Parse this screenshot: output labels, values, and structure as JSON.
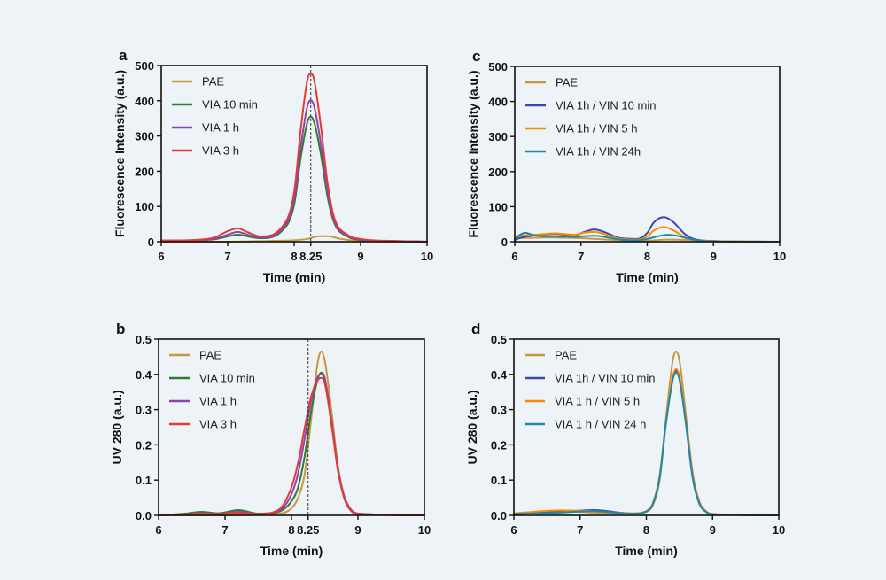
{
  "chart_data": [
    {
      "id": "a",
      "type": "line",
      "panel_label": "a",
      "xlabel": "Time (min)",
      "ylabel": "Fluorescence Intensity (a.u.)",
      "xlim": [
        6,
        10
      ],
      "ylim": [
        0,
        500
      ],
      "xticks": [
        "6",
        "7",
        "8",
        "8.25",
        "9",
        "10"
      ],
      "xtick_values": [
        6,
        7,
        8,
        8.25,
        9,
        10
      ],
      "yticks": [
        "0",
        "100",
        "200",
        "300",
        "400",
        "500"
      ],
      "ytick_values": [
        0,
        100,
        200,
        300,
        400,
        500
      ],
      "marker_line_x": 8.25,
      "legend_position": "top-left",
      "series": [
        {
          "name": "PAE",
          "color": "#c9973f",
          "x": [
            6.0,
            7.0,
            7.6,
            8.0,
            8.2,
            8.35,
            8.5,
            8.7,
            9.0,
            10.0
          ],
          "y": [
            0,
            0,
            2,
            4,
            8,
            15,
            16,
            8,
            2,
            0
          ]
        },
        {
          "name": "VIA 10 min",
          "color": "#2e7d32",
          "x": [
            6.0,
            6.5,
            6.8,
            7.0,
            7.15,
            7.3,
            7.5,
            7.8,
            8.0,
            8.1,
            8.2,
            8.25,
            8.3,
            8.4,
            8.5,
            8.6,
            8.8,
            9.0,
            9.5,
            10.0
          ],
          "y": [
            3,
            4,
            7,
            15,
            20,
            15,
            10,
            28,
            105,
            240,
            340,
            355,
            340,
            250,
            130,
            55,
            15,
            5,
            2,
            0
          ]
        },
        {
          "name": "VIA 1 h",
          "color": "#8e44ad",
          "x": [
            6.0,
            6.5,
            6.8,
            7.0,
            7.15,
            7.3,
            7.5,
            7.8,
            8.0,
            8.1,
            8.2,
            8.25,
            8.3,
            8.4,
            8.5,
            8.6,
            8.8,
            9.0,
            9.5,
            10.0
          ],
          "y": [
            3,
            4,
            8,
            20,
            28,
            20,
            12,
            32,
            120,
            270,
            385,
            402,
            385,
            280,
            145,
            60,
            17,
            6,
            2,
            0
          ]
        },
        {
          "name": "VIA 3 h",
          "color": "#e53935",
          "x": [
            6.0,
            6.5,
            6.8,
            7.0,
            7.15,
            7.3,
            7.5,
            7.8,
            8.0,
            8.1,
            8.2,
            8.25,
            8.3,
            8.4,
            8.5,
            8.6,
            8.8,
            9.0,
            9.5,
            10.0
          ],
          "y": [
            3,
            5,
            12,
            30,
            38,
            27,
            15,
            38,
            140,
            320,
            460,
            478,
            460,
            330,
            170,
            70,
            20,
            8,
            2,
            0
          ]
        }
      ]
    },
    {
      "id": "c",
      "type": "line",
      "panel_label": "c",
      "xlabel": "Time (min)",
      "ylabel": "Fluorescence Intensity (a.u.)",
      "xlim": [
        6,
        10
      ],
      "ylim": [
        0,
        500
      ],
      "xticks": [
        "6",
        "7",
        "8",
        "9",
        "10"
      ],
      "xtick_values": [
        6,
        7,
        8,
        9,
        10
      ],
      "yticks": [
        "0",
        "100",
        "200",
        "300",
        "400",
        "500"
      ],
      "ytick_values": [
        0,
        100,
        200,
        300,
        400,
        500
      ],
      "legend_position": "top-left",
      "series": [
        {
          "name": "PAE",
          "color": "#c9973f",
          "x": [
            6.0,
            6.5,
            7.0,
            7.5,
            8.0,
            8.3,
            8.6,
            9.0,
            10.0
          ],
          "y": [
            10,
            12,
            10,
            5,
            3,
            6,
            5,
            2,
            0
          ]
        },
        {
          "name": "VIA 1h / VIN 10 min",
          "color": "#3949ab",
          "x": [
            6.0,
            6.1,
            6.3,
            6.6,
            6.9,
            7.05,
            7.2,
            7.35,
            7.6,
            7.85,
            8.0,
            8.1,
            8.25,
            8.4,
            8.55,
            8.7,
            9.0,
            10.0
          ],
          "y": [
            5,
            12,
            18,
            22,
            18,
            28,
            35,
            28,
            10,
            8,
            25,
            55,
            70,
            55,
            25,
            8,
            2,
            0
          ]
        },
        {
          "name": "VIA 1h / VIN 5 h",
          "color": "#fb8c00",
          "x": [
            6.0,
            6.1,
            6.3,
            6.6,
            6.9,
            7.05,
            7.2,
            7.35,
            7.6,
            7.85,
            8.0,
            8.1,
            8.25,
            8.4,
            8.55,
            8.7,
            9.0,
            10.0
          ],
          "y": [
            10,
            18,
            20,
            24,
            20,
            26,
            28,
            22,
            8,
            6,
            15,
            32,
            42,
            32,
            15,
            5,
            2,
            0
          ]
        },
        {
          "name": "VIA 1h / VIN 24h",
          "color": "#1e88a8",
          "x": [
            6.0,
            6.1,
            6.15,
            6.3,
            6.6,
            6.9,
            7.05,
            7.2,
            7.35,
            7.6,
            7.85,
            8.0,
            8.15,
            8.3,
            8.45,
            8.6,
            8.8,
            9.0,
            10.0
          ],
          "y": [
            10,
            22,
            26,
            18,
            15,
            14,
            16,
            17,
            14,
            6,
            4,
            8,
            15,
            20,
            17,
            10,
            3,
            1,
            0
          ]
        }
      ]
    },
    {
      "id": "b",
      "type": "line",
      "panel_label": "b",
      "xlabel": "Time (min)",
      "ylabel": "UV 280 (a.u.)",
      "xlim": [
        6,
        10
      ],
      "ylim": [
        0,
        0.5
      ],
      "xticks": [
        "6",
        "7",
        "8",
        "8.25",
        "9",
        "10"
      ],
      "xtick_values": [
        6,
        7,
        8,
        8.25,
        9,
        10
      ],
      "yticks": [
        "0.0",
        "0.1",
        "0.2",
        "0.3",
        "0.4",
        "0.5"
      ],
      "ytick_values": [
        0,
        0.1,
        0.2,
        0.3,
        0.4,
        0.5
      ],
      "marker_line_x": 8.25,
      "legend_position": "top-left",
      "series": [
        {
          "name": "PAE",
          "color": "#c9973f",
          "x": [
            6.0,
            7.0,
            7.8,
            8.0,
            8.1,
            8.2,
            8.3,
            8.4,
            8.45,
            8.5,
            8.6,
            8.7,
            8.8,
            8.9,
            9.0,
            10.0
          ],
          "y": [
            0,
            0,
            0.005,
            0.02,
            0.05,
            0.12,
            0.28,
            0.44,
            0.465,
            0.44,
            0.3,
            0.14,
            0.05,
            0.015,
            0.005,
            0
          ]
        },
        {
          "name": "VIA 10 min",
          "color": "#2e7d32",
          "x": [
            6.0,
            6.4,
            6.65,
            6.9,
            7.2,
            7.5,
            7.8,
            8.0,
            8.1,
            8.2,
            8.3,
            8.4,
            8.45,
            8.5,
            8.6,
            8.7,
            8.8,
            8.9,
            9.0,
            10.0
          ],
          "y": [
            0,
            0.005,
            0.01,
            0.006,
            0.015,
            0.005,
            0.01,
            0.04,
            0.08,
            0.17,
            0.3,
            0.39,
            0.405,
            0.39,
            0.27,
            0.13,
            0.05,
            0.015,
            0.005,
            0
          ]
        },
        {
          "name": "VIA 1 h",
          "color": "#8e44ad",
          "x": [
            6.0,
            6.4,
            6.65,
            6.9,
            7.2,
            7.5,
            7.8,
            8.0,
            8.1,
            8.2,
            8.3,
            8.4,
            8.45,
            8.5,
            8.6,
            8.7,
            8.8,
            8.9,
            9.0,
            10.0
          ],
          "y": [
            0,
            0.003,
            0.006,
            0.004,
            0.01,
            0.004,
            0.012,
            0.06,
            0.12,
            0.22,
            0.33,
            0.395,
            0.4,
            0.385,
            0.27,
            0.13,
            0.05,
            0.015,
            0.005,
            0
          ]
        },
        {
          "name": "VIA 3 h",
          "color": "#e53935",
          "x": [
            6.0,
            6.4,
            6.65,
            6.9,
            7.2,
            7.5,
            7.8,
            8.0,
            8.1,
            8.2,
            8.3,
            8.4,
            8.45,
            8.5,
            8.6,
            8.7,
            8.8,
            8.9,
            9.0,
            10.0
          ],
          "y": [
            0,
            0.003,
            0.005,
            0.004,
            0.008,
            0.004,
            0.015,
            0.08,
            0.15,
            0.25,
            0.34,
            0.385,
            0.39,
            0.375,
            0.26,
            0.125,
            0.045,
            0.012,
            0.004,
            0
          ]
        }
      ]
    },
    {
      "id": "d",
      "type": "line",
      "panel_label": "d",
      "xlabel": "Time (min)",
      "ylabel": "UV 280 (a.u.)",
      "xlim": [
        6,
        10
      ],
      "ylim": [
        0,
        0.5
      ],
      "xticks": [
        "6",
        "7",
        "8",
        "9",
        "10"
      ],
      "xtick_values": [
        6,
        7,
        8,
        9,
        10
      ],
      "yticks": [
        "0.0",
        "0.1",
        "0.2",
        "0.3",
        "0.4",
        "0.5"
      ],
      "ytick_values": [
        0,
        0.1,
        0.2,
        0.3,
        0.4,
        0.5
      ],
      "legend_position": "top-left",
      "series": [
        {
          "name": "PAE",
          "color": "#c9973f",
          "x": [
            6.0,
            6.7,
            7.2,
            7.8,
            8.0,
            8.1,
            8.2,
            8.3,
            8.4,
            8.45,
            8.5,
            8.6,
            8.7,
            8.8,
            8.9,
            9.0,
            10.0
          ],
          "y": [
            0.005,
            0.012,
            0.008,
            0.005,
            0.01,
            0.03,
            0.1,
            0.28,
            0.44,
            0.465,
            0.44,
            0.28,
            0.12,
            0.04,
            0.012,
            0.004,
            0
          ]
        },
        {
          "name": "VIA 1h / VIN 10 min",
          "color": "#3949ab",
          "x": [
            6.0,
            6.7,
            7.2,
            7.8,
            8.0,
            8.1,
            8.2,
            8.3,
            8.4,
            8.45,
            8.5,
            8.6,
            8.7,
            8.8,
            8.9,
            9.0,
            10.0
          ],
          "y": [
            0.003,
            0.01,
            0.015,
            0.005,
            0.012,
            0.035,
            0.11,
            0.27,
            0.39,
            0.41,
            0.39,
            0.26,
            0.11,
            0.035,
            0.01,
            0.003,
            0
          ]
        },
        {
          "name": "VIA 1 h / VIN 5 h",
          "color": "#fb8c00",
          "x": [
            6.0,
            6.7,
            7.2,
            7.8,
            8.0,
            8.1,
            8.2,
            8.3,
            8.4,
            8.45,
            8.5,
            8.6,
            8.7,
            8.8,
            8.9,
            9.0,
            10.0
          ],
          "y": [
            0.006,
            0.014,
            0.012,
            0.006,
            0.012,
            0.035,
            0.11,
            0.27,
            0.395,
            0.415,
            0.395,
            0.26,
            0.11,
            0.035,
            0.01,
            0.003,
            0
          ]
        },
        {
          "name": "VIA 1 h / VIN 24 h",
          "color": "#1e88a8",
          "x": [
            6.0,
            6.7,
            7.2,
            7.8,
            8.0,
            8.1,
            8.2,
            8.3,
            8.4,
            8.45,
            8.5,
            8.6,
            8.7,
            8.8,
            8.9,
            9.0,
            10.0
          ],
          "y": [
            0.004,
            0.008,
            0.012,
            0.005,
            0.011,
            0.033,
            0.105,
            0.265,
            0.385,
            0.405,
            0.385,
            0.255,
            0.105,
            0.033,
            0.01,
            0.003,
            0
          ]
        }
      ]
    }
  ]
}
